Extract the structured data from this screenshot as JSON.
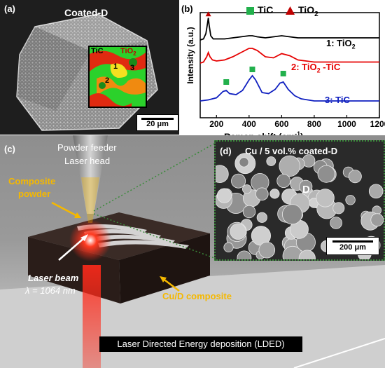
{
  "panel_a": {
    "label": "(a)",
    "title": "Coated-D",
    "map_labels": {
      "tic": "TiC",
      "tio2_base": "TiO",
      "tio2_sub": "2",
      "r1": "1",
      "r2": "2",
      "r3": "3"
    },
    "scale_bar": "20 μm"
  },
  "panel_b": {
    "label": "(b)",
    "legend": {
      "tic": "TiC",
      "tio2_base": "TiO",
      "tio2_sub": "2"
    },
    "curve_labels": [
      {
        "base": "1: TiO",
        "sub": "2",
        "rest": "",
        "color": "#000000"
      },
      {
        "base": "2: TiO",
        "sub": "2",
        "rest": " -TiC",
        "color": "#e60000"
      },
      {
        "base": "3: TiC",
        "sub": "",
        "rest": "",
        "color": "#1020c0"
      }
    ],
    "colors": {
      "tic_marker": "#22b04c",
      "tio2_marker": "#c00000"
    }
  },
  "chart_data": {
    "type": "line",
    "xlabel": "Raman shift (cm-1)",
    "xlabel_base": "Raman shift (cm",
    "xlabel_sup": "-1",
    "xlabel_end": ")",
    "ylabel": "Intensity (a.u.)",
    "xlim": [
      100,
      1200
    ],
    "xticks": [
      "200",
      "400",
      "600",
      "800",
      "1000",
      "1200"
    ],
    "xtick_values": [
      200,
      400,
      600,
      800,
      1000,
      1200
    ],
    "grid": false,
    "series": [
      {
        "name": "1: TiO2",
        "color": "#000000",
        "x": [
          100,
          120,
          135,
          145,
          150,
          155,
          165,
          180,
          200,
          250,
          300,
          350,
          400,
          420,
          450,
          500,
          550,
          600,
          650,
          700,
          800,
          900,
          1000,
          1100,
          1200
        ],
        "y": [
          0.74,
          0.75,
          0.8,
          0.9,
          0.95,
          0.88,
          0.78,
          0.75,
          0.75,
          0.75,
          0.76,
          0.77,
          0.78,
          0.78,
          0.77,
          0.76,
          0.77,
          0.78,
          0.77,
          0.76,
          0.76,
          0.76,
          0.76,
          0.76,
          0.76
        ]
      },
      {
        "name": "2: TiO2-TiC",
        "color": "#e60000",
        "x": [
          100,
          120,
          140,
          150,
          160,
          175,
          200,
          250,
          300,
          350,
          400,
          420,
          450,
          500,
          550,
          600,
          650,
          700,
          800,
          900,
          1000,
          1100,
          1200
        ],
        "y": [
          0.52,
          0.53,
          0.58,
          0.62,
          0.58,
          0.55,
          0.54,
          0.55,
          0.58,
          0.62,
          0.66,
          0.66,
          0.64,
          0.58,
          0.57,
          0.61,
          0.59,
          0.55,
          0.53,
          0.53,
          0.53,
          0.53,
          0.53
        ]
      },
      {
        "name": "3: TiC",
        "color": "#1020c0",
        "x": [
          100,
          150,
          200,
          240,
          260,
          280,
          320,
          360,
          400,
          420,
          440,
          480,
          520,
          560,
          590,
          610,
          640,
          680,
          720,
          800,
          900,
          1000,
          1100,
          1200
        ],
        "y": [
          0.16,
          0.17,
          0.19,
          0.25,
          0.26,
          0.23,
          0.22,
          0.26,
          0.36,
          0.4,
          0.36,
          0.24,
          0.23,
          0.27,
          0.33,
          0.34,
          0.27,
          0.21,
          0.18,
          0.16,
          0.16,
          0.16,
          0.16,
          0.16
        ]
      }
    ],
    "markers": {
      "tio2": [
        {
          "x": 150,
          "y": 0.985
        }
      ],
      "tic": [
        {
          "x": 260,
          "y": 0.34
        },
        {
          "x": 420,
          "y": 0.46
        },
        {
          "x": 610,
          "y": 0.42
        }
      ]
    }
  },
  "panel_c": {
    "label": "(c)",
    "powder_feeder": "Powder feeder",
    "laser_head": "Laser head",
    "composite_powder_1": "Composite",
    "composite_powder_2": "powder",
    "laser_beam": "Laser beam",
    "wavelength": "λ = 1064 nm",
    "cu_d_composite": "Cu/D composite",
    "ldded": "Laser Directed Energy deposition (LDED)",
    "colors": {
      "yellow_label": "#f5b800",
      "laser_red": "#ff2a1a"
    }
  },
  "panel_d": {
    "label": "(d)",
    "title": "Cu / 5 vol.% coated-D",
    "d_label": "D",
    "scale_bar": "200 μm"
  }
}
